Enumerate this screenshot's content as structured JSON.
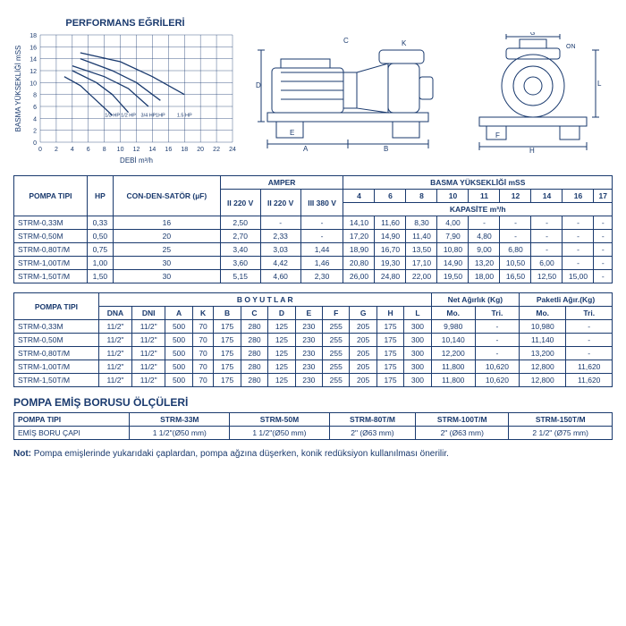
{
  "chart": {
    "title": "PERFORMANS EĞRİLERİ",
    "y_label": "BASMA YÜKSEKLİĞİ mSS",
    "x_label": "DEBİ m³/h",
    "x_min": 0,
    "x_max": 24,
    "x_step": 2,
    "y_min": 0,
    "y_max": 18,
    "y_step": 2,
    "grid_color": "#1a3a6e",
    "curve_color": "#1a3a6e",
    "series_labels": [
      "1/3 HP",
      "1/2 HP",
      "3/4 HP",
      "1HP",
      "1.5 HP"
    ],
    "curves": [
      [
        [
          3,
          11
        ],
        [
          5,
          9.5
        ],
        [
          7,
          7
        ],
        [
          9,
          4.5
        ]
      ],
      [
        [
          4,
          12
        ],
        [
          7,
          10
        ],
        [
          9,
          8
        ],
        [
          11,
          5
        ]
      ],
      [
        [
          4,
          12.8
        ],
        [
          8,
          11
        ],
        [
          11,
          9
        ],
        [
          13.5,
          6
        ]
      ],
      [
        [
          5,
          14
        ],
        [
          9,
          12
        ],
        [
          12,
          10
        ],
        [
          15,
          7
        ]
      ],
      [
        [
          5,
          15
        ],
        [
          10,
          13.5
        ],
        [
          14,
          11
        ],
        [
          18,
          8
        ]
      ]
    ]
  },
  "diagram": {
    "labels_side": [
      "A",
      "B",
      "C",
      "D",
      "E",
      "K"
    ],
    "labels_front": [
      "F",
      "G",
      "H",
      "L",
      "ON"
    ],
    "stroke": "#1a3a6e"
  },
  "table1": {
    "headers": {
      "pompa": "POMPA TIPI",
      "hp": "HP",
      "cond": "CON-DEN-SATÖR (µF)",
      "amper": "AMPER",
      "amper_sub": [
        "II 220 V",
        "II 220 V",
        "III 380 V"
      ],
      "basma": "BASMA YÜKSEKLİĞİ mSS",
      "basma_cols": [
        "4",
        "6",
        "8",
        "10",
        "11",
        "12",
        "14",
        "16",
        "17"
      ],
      "kapasite": "KAPASİTE m³/h"
    },
    "rows": [
      [
        "STRM-0,33M",
        "0,33",
        "16",
        "2,50",
        "-",
        "-",
        "14,10",
        "11,60",
        "8,30",
        "4,00",
        "-",
        "-",
        "-",
        "-",
        "-"
      ],
      [
        "STRM-0,50M",
        "0,50",
        "20",
        "2,70",
        "2,33",
        "-",
        "17,20",
        "14,90",
        "11,40",
        "7,90",
        "4,80",
        "-",
        "-",
        "-",
        "-"
      ],
      [
        "STRM-0,80T/M",
        "0,75",
        "25",
        "3,40",
        "3,03",
        "1,44",
        "18,90",
        "16,70",
        "13,50",
        "10,80",
        "9,00",
        "6,80",
        "-",
        "-",
        "-"
      ],
      [
        "STRM-1,00T/M",
        "1,00",
        "30",
        "3,60",
        "4,42",
        "1,46",
        "20,80",
        "19,30",
        "17,10",
        "14,90",
        "13,20",
        "10,50",
        "6,00",
        "-",
        "-"
      ],
      [
        "STRM-1,50T/M",
        "1,50",
        "30",
        "5,15",
        "4,60",
        "2,30",
        "26,00",
        "24,80",
        "22,00",
        "19,50",
        "18,00",
        "16,50",
        "12,50",
        "15,00",
        "-"
      ]
    ]
  },
  "table2": {
    "headers": {
      "pompa": "POMPA TIPI",
      "boyutlar": "B O Y U T L A R",
      "net": "Net Ağırlık (Kg)",
      "paketli": "Paketli Ağır.(Kg)",
      "dim_cols": [
        "DNA",
        "DNI",
        "A",
        "K",
        "B",
        "C",
        "D",
        "E",
        "F",
        "G",
        "H",
        "L"
      ],
      "wt_sub": [
        "Mo.",
        "Tri.",
        "Mo.",
        "Tri."
      ]
    },
    "rows": [
      [
        "STRM-0,33M",
        "11/2\"",
        "11/2\"",
        "500",
        "70",
        "175",
        "280",
        "125",
        "230",
        "255",
        "205",
        "175",
        "300",
        "9,980",
        "-",
        "10,980",
        "-"
      ],
      [
        "STRM-0,50M",
        "11/2\"",
        "11/2\"",
        "500",
        "70",
        "175",
        "280",
        "125",
        "230",
        "255",
        "205",
        "175",
        "300",
        "10,140",
        "-",
        "11,140",
        "-"
      ],
      [
        "STRM-0,80T/M",
        "11/2\"",
        "11/2\"",
        "500",
        "70",
        "175",
        "280",
        "125",
        "230",
        "255",
        "205",
        "175",
        "300",
        "12,200",
        "-",
        "13,200",
        "-"
      ],
      [
        "STRM-1,00T/M",
        "11/2\"",
        "11/2\"",
        "500",
        "70",
        "175",
        "280",
        "125",
        "230",
        "255",
        "205",
        "175",
        "300",
        "11,800",
        "10,620",
        "12,800",
        "11,620"
      ],
      [
        "STRM-1,50T/M",
        "11/2\"",
        "11/2\"",
        "500",
        "70",
        "175",
        "280",
        "125",
        "230",
        "255",
        "205",
        "175",
        "300",
        "11,800",
        "10,620",
        "12,800",
        "11,620"
      ]
    ]
  },
  "table3": {
    "title": "POMPA EMİŞ BORUSU ÖLÇÜLERİ",
    "headers": [
      "POMPA TIPI",
      "STRM-33M",
      "STRM-50M",
      "STRM-80T/M",
      "STRM-100T/M",
      "STRM-150T/M"
    ],
    "row_label": "EMİŞ BORU ÇAPI",
    "row": [
      "1 1/2\"(Ø50 mm)",
      "1 1/2\"(Ø50 mm)",
      "2\" (Ø63 mm)",
      "2\" (Ø63 mm)",
      "2 1/2\" (Ø75 mm)"
    ]
  },
  "note": {
    "prefix": "Not:",
    "text": " Pompa emişlerinde yukarıdaki çaplardan, pompa ağzına düşerken, konik redüksiyon kullanılması önerilir."
  }
}
